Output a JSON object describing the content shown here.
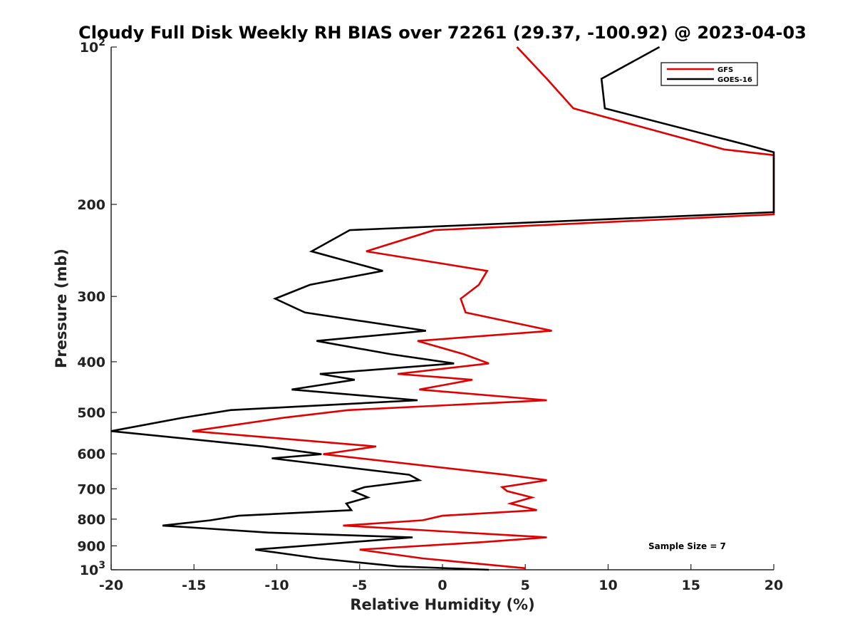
{
  "chart_data": {
    "type": "line",
    "title": "Cloudy Full Disk Weekly RH BIAS over 72261 (29.37, -100.92) @ 2023-04-03",
    "xlabel": "Relative Humidity (%)",
    "ylabel": "Pressure (mb)",
    "xlim": [
      -20,
      20
    ],
    "ylim": [
      100,
      1000
    ],
    "y_scale": "log",
    "y_reversed": true,
    "x_ticks": [
      -20,
      -15,
      -10,
      -5,
      0,
      5,
      10,
      15,
      20
    ],
    "x_tick_labels": [
      "-20",
      "-15",
      "-10",
      "-5",
      "0",
      "5",
      "10",
      "15",
      "20"
    ],
    "y_ticks": [
      100,
      200,
      300,
      400,
      500,
      600,
      700,
      800,
      900,
      1000
    ],
    "y_tick_labels": [
      {
        "base": "10",
        "exp": "2"
      },
      {
        "base": "200",
        "exp": ""
      },
      {
        "base": "300",
        "exp": ""
      },
      {
        "base": "400",
        "exp": ""
      },
      {
        "base": "500",
        "exp": ""
      },
      {
        "base": "600",
        "exp": ""
      },
      {
        "base": "700",
        "exp": ""
      },
      {
        "base": "800",
        "exp": ""
      },
      {
        "base": "900",
        "exp": ""
      },
      {
        "base": "10",
        "exp": "3"
      }
    ],
    "grid": false,
    "legend_position": "top-right",
    "annotation": "Sample Size = 7",
    "series": [
      {
        "name": "GFS",
        "color": "#e00000",
        "points": [
          [
            4.5,
            100
          ],
          [
            6.3,
            115
          ],
          [
            7.9,
            131
          ],
          [
            17.0,
            157
          ],
          [
            20.0,
            161
          ],
          [
            20.0,
            209
          ],
          [
            -0.5,
            224
          ],
          [
            -4.6,
            246
          ],
          [
            2.7,
            268
          ],
          [
            2.2,
            285
          ],
          [
            1.1,
            303
          ],
          [
            1.4,
            322
          ],
          [
            6.6,
            349
          ],
          [
            -1.5,
            365
          ],
          [
            1.3,
            387
          ],
          [
            2.8,
            403
          ],
          [
            -2.7,
            422
          ],
          [
            1.8,
            433
          ],
          [
            -1.4,
            452
          ],
          [
            6.3,
            474
          ],
          [
            -5.7,
            495
          ],
          [
            -9.6,
            512
          ],
          [
            -15.1,
            543
          ],
          [
            -4.0,
            581
          ],
          [
            -7.2,
            601
          ],
          [
            3.8,
            658
          ],
          [
            6.3,
            674
          ],
          [
            3.6,
            695
          ],
          [
            3.9,
            707
          ],
          [
            5.4,
            727
          ],
          [
            4.1,
            747
          ],
          [
            5.7,
            769
          ],
          [
            0.0,
            788
          ],
          [
            -1.2,
            804
          ],
          [
            -6.0,
            823
          ],
          [
            6.3,
            867
          ],
          [
            2.5,
            885
          ],
          [
            -5.0,
            915
          ],
          [
            -1.2,
            951
          ],
          [
            5.0,
            993
          ]
        ]
      },
      {
        "name": "GOES-16",
        "color": "#000000",
        "points": [
          [
            13.1,
            100
          ],
          [
            9.6,
            115
          ],
          [
            9.8,
            131
          ],
          [
            18.4,
            154
          ],
          [
            20.0,
            159
          ],
          [
            20.0,
            207
          ],
          [
            -5.6,
            224
          ],
          [
            -7.9,
            246
          ],
          [
            -3.6,
            268
          ],
          [
            -8.0,
            285
          ],
          [
            -10.1,
            303
          ],
          [
            -8.3,
            322
          ],
          [
            -1.0,
            349
          ],
          [
            -7.6,
            365
          ],
          [
            -3.1,
            387
          ],
          [
            0.7,
            403
          ],
          [
            -7.4,
            422
          ],
          [
            -5.3,
            433
          ],
          [
            -9.1,
            452
          ],
          [
            -1.5,
            474
          ],
          [
            -12.8,
            495
          ],
          [
            -15.7,
            512
          ],
          [
            -20.0,
            543
          ],
          [
            -10.8,
            581
          ],
          [
            -7.3,
            601
          ],
          [
            -10.3,
            612
          ],
          [
            -2.0,
            658
          ],
          [
            -1.4,
            674
          ],
          [
            -4.7,
            695
          ],
          [
            -5.4,
            707
          ],
          [
            -4.5,
            727
          ],
          [
            -5.8,
            747
          ],
          [
            -5.5,
            769
          ],
          [
            -12.3,
            788
          ],
          [
            -14.0,
            804
          ],
          [
            -16.9,
            823
          ],
          [
            -10.5,
            849
          ],
          [
            -1.8,
            867
          ],
          [
            -11.3,
            915
          ],
          [
            -7.5,
            951
          ],
          [
            -2.7,
            985
          ],
          [
            2.8,
            1000
          ]
        ]
      }
    ]
  }
}
